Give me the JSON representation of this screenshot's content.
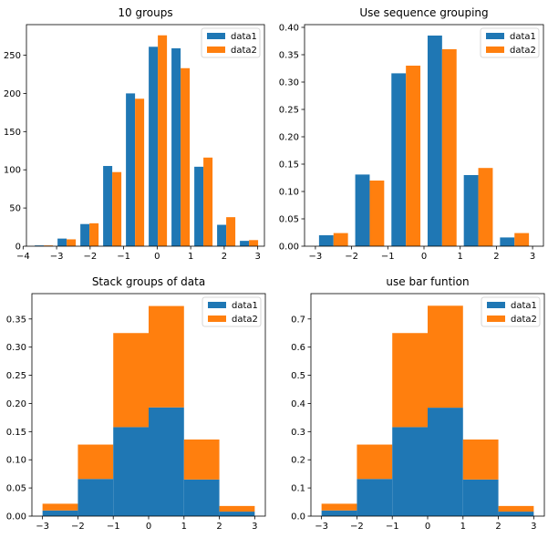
{
  "colors": {
    "data1": "#1f77b4",
    "data2": "#ff7f0e"
  },
  "chart_data": [
    {
      "type": "bar",
      "title": "10 groups",
      "xlim": [
        -3.9,
        3.2
      ],
      "ylim": [
        0,
        290
      ],
      "xticks": [
        -4,
        -3,
        -2,
        -1,
        0,
        1,
        2,
        3
      ],
      "yticks": [
        0,
        50,
        100,
        150,
        200,
        250
      ],
      "ytick_labels": [
        "0",
        "50",
        "100",
        "150",
        "200",
        "250"
      ],
      "legend": {
        "position": "top-right",
        "entries": [
          "data1",
          "data2"
        ]
      },
      "bin_edges": [
        -3.72,
        -3.04,
        -2.36,
        -1.68,
        -1.0,
        -0.32,
        0.36,
        1.04,
        1.72,
        2.4,
        3.08
      ],
      "series": [
        {
          "name": "data1",
          "values": [
            1,
            10,
            29,
            105,
            200,
            261,
            259,
            104,
            28,
            7
          ]
        },
        {
          "name": "data2",
          "values": [
            1,
            9,
            30,
            97,
            193,
            276,
            233,
            116,
            38,
            8
          ]
        }
      ]
    },
    {
      "type": "bar",
      "title": "Use sequence grouping",
      "xlim": [
        -3.3,
        3.3
      ],
      "ylim": [
        0,
        0.405
      ],
      "xticks": [
        -3,
        -2,
        -1,
        0,
        1,
        2,
        3
      ],
      "yticks": [
        0,
        0.05,
        0.1,
        0.15,
        0.2,
        0.25,
        0.3,
        0.35,
        0.4
      ],
      "ytick_labels": [
        "0.00",
        "0.05",
        "0.10",
        "0.15",
        "0.20",
        "0.25",
        "0.30",
        "0.35",
        "0.40"
      ],
      "legend": {
        "position": "top-right",
        "entries": [
          "data1",
          "data2"
        ]
      },
      "bin_edges": [
        -3,
        -2,
        -1,
        0,
        1,
        2,
        3
      ],
      "series": [
        {
          "name": "data1",
          "values": [
            0.02,
            0.131,
            0.316,
            0.385,
            0.13,
            0.016
          ]
        },
        {
          "name": "data2",
          "values": [
            0.024,
            0.12,
            0.33,
            0.36,
            0.143,
            0.024
          ]
        }
      ]
    },
    {
      "type": "bar",
      "stacked": true,
      "title": "Stack groups of data",
      "xlim": [
        -3.3,
        3.3
      ],
      "ylim": [
        0,
        0.395
      ],
      "xticks": [
        -3,
        -2,
        -1,
        0,
        1,
        2,
        3
      ],
      "yticks": [
        0,
        0.05,
        0.1,
        0.15,
        0.2,
        0.25,
        0.3,
        0.35
      ],
      "ytick_labels": [
        "0.00",
        "0.05",
        "0.10",
        "0.15",
        "0.20",
        "0.25",
        "0.30",
        "0.35"
      ],
      "legend": {
        "position": "top-right",
        "entries": [
          "data1",
          "data2"
        ]
      },
      "bin_edges": [
        -3,
        -2,
        -1,
        0,
        1,
        2,
        3
      ],
      "series": [
        {
          "name": "data1",
          "values": [
            0.01,
            0.066,
            0.158,
            0.193,
            0.065,
            0.008
          ]
        },
        {
          "name": "data2",
          "values": [
            0.012,
            0.061,
            0.167,
            0.18,
            0.071,
            0.01
          ]
        }
      ]
    },
    {
      "type": "bar",
      "stacked": true,
      "title": "use bar funtion",
      "xlim": [
        -3.3,
        3.3
      ],
      "ylim": [
        0,
        0.79
      ],
      "xticks": [
        -3,
        -2,
        -1,
        0,
        1,
        2,
        3
      ],
      "yticks": [
        0,
        0.1,
        0.2,
        0.3,
        0.4,
        0.5,
        0.6,
        0.7
      ],
      "ytick_labels": [
        "0.0",
        "0.1",
        "0.2",
        "0.3",
        "0.4",
        "0.5",
        "0.6",
        "0.7"
      ],
      "legend": {
        "position": "top-right",
        "entries": [
          "data1",
          "data2"
        ]
      },
      "bin_edges": [
        -3,
        -2,
        -1,
        0,
        1,
        2,
        3
      ],
      "series": [
        {
          "name": "data1",
          "values": [
            0.02,
            0.132,
            0.316,
            0.385,
            0.13,
            0.016
          ]
        },
        {
          "name": "data2",
          "values": [
            0.024,
            0.122,
            0.334,
            0.362,
            0.142,
            0.02
          ]
        }
      ]
    }
  ]
}
